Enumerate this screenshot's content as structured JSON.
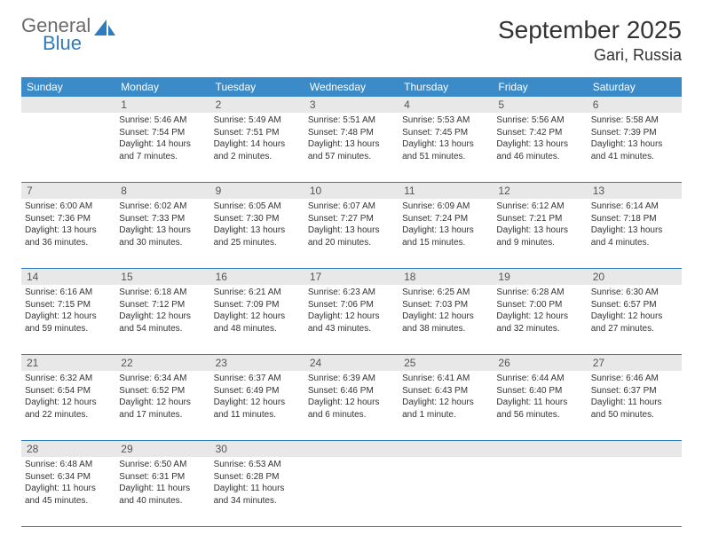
{
  "logo": {
    "line1": "General",
    "line2": "Blue",
    "icon_color": "#2f7bbf"
  },
  "title": {
    "month_year": "September 2025",
    "location": "Gari, Russia"
  },
  "colors": {
    "header_bg": "#3b8bc8",
    "header_text": "#ffffff",
    "daynum_bg": "#e8e8e8",
    "border": "#2f7bbf",
    "text": "#333333"
  },
  "weekdays": [
    "Sunday",
    "Monday",
    "Tuesday",
    "Wednesday",
    "Thursday",
    "Friday",
    "Saturday"
  ],
  "weeks": [
    {
      "nums": [
        "",
        "1",
        "2",
        "3",
        "4",
        "5",
        "6"
      ],
      "cells": [
        {},
        {
          "sunrise": "Sunrise: 5:46 AM",
          "sunset": "Sunset: 7:54 PM",
          "daylight": "Daylight: 14 hours and 7 minutes."
        },
        {
          "sunrise": "Sunrise: 5:49 AM",
          "sunset": "Sunset: 7:51 PM",
          "daylight": "Daylight: 14 hours and 2 minutes."
        },
        {
          "sunrise": "Sunrise: 5:51 AM",
          "sunset": "Sunset: 7:48 PM",
          "daylight": "Daylight: 13 hours and 57 minutes."
        },
        {
          "sunrise": "Sunrise: 5:53 AM",
          "sunset": "Sunset: 7:45 PM",
          "daylight": "Daylight: 13 hours and 51 minutes."
        },
        {
          "sunrise": "Sunrise: 5:56 AM",
          "sunset": "Sunset: 7:42 PM",
          "daylight": "Daylight: 13 hours and 46 minutes."
        },
        {
          "sunrise": "Sunrise: 5:58 AM",
          "sunset": "Sunset: 7:39 PM",
          "daylight": "Daylight: 13 hours and 41 minutes."
        }
      ]
    },
    {
      "nums": [
        "7",
        "8",
        "9",
        "10",
        "11",
        "12",
        "13"
      ],
      "cells": [
        {
          "sunrise": "Sunrise: 6:00 AM",
          "sunset": "Sunset: 7:36 PM",
          "daylight": "Daylight: 13 hours and 36 minutes."
        },
        {
          "sunrise": "Sunrise: 6:02 AM",
          "sunset": "Sunset: 7:33 PM",
          "daylight": "Daylight: 13 hours and 30 minutes."
        },
        {
          "sunrise": "Sunrise: 6:05 AM",
          "sunset": "Sunset: 7:30 PM",
          "daylight": "Daylight: 13 hours and 25 minutes."
        },
        {
          "sunrise": "Sunrise: 6:07 AM",
          "sunset": "Sunset: 7:27 PM",
          "daylight": "Daylight: 13 hours and 20 minutes."
        },
        {
          "sunrise": "Sunrise: 6:09 AM",
          "sunset": "Sunset: 7:24 PM",
          "daylight": "Daylight: 13 hours and 15 minutes."
        },
        {
          "sunrise": "Sunrise: 6:12 AM",
          "sunset": "Sunset: 7:21 PM",
          "daylight": "Daylight: 13 hours and 9 minutes."
        },
        {
          "sunrise": "Sunrise: 6:14 AM",
          "sunset": "Sunset: 7:18 PM",
          "daylight": "Daylight: 13 hours and 4 minutes."
        }
      ]
    },
    {
      "nums": [
        "14",
        "15",
        "16",
        "17",
        "18",
        "19",
        "20"
      ],
      "cells": [
        {
          "sunrise": "Sunrise: 6:16 AM",
          "sunset": "Sunset: 7:15 PM",
          "daylight": "Daylight: 12 hours and 59 minutes."
        },
        {
          "sunrise": "Sunrise: 6:18 AM",
          "sunset": "Sunset: 7:12 PM",
          "daylight": "Daylight: 12 hours and 54 minutes."
        },
        {
          "sunrise": "Sunrise: 6:21 AM",
          "sunset": "Sunset: 7:09 PM",
          "daylight": "Daylight: 12 hours and 48 minutes."
        },
        {
          "sunrise": "Sunrise: 6:23 AM",
          "sunset": "Sunset: 7:06 PM",
          "daylight": "Daylight: 12 hours and 43 minutes."
        },
        {
          "sunrise": "Sunrise: 6:25 AM",
          "sunset": "Sunset: 7:03 PM",
          "daylight": "Daylight: 12 hours and 38 minutes."
        },
        {
          "sunrise": "Sunrise: 6:28 AM",
          "sunset": "Sunset: 7:00 PM",
          "daylight": "Daylight: 12 hours and 32 minutes."
        },
        {
          "sunrise": "Sunrise: 6:30 AM",
          "sunset": "Sunset: 6:57 PM",
          "daylight": "Daylight: 12 hours and 27 minutes."
        }
      ]
    },
    {
      "nums": [
        "21",
        "22",
        "23",
        "24",
        "25",
        "26",
        "27"
      ],
      "cells": [
        {
          "sunrise": "Sunrise: 6:32 AM",
          "sunset": "Sunset: 6:54 PM",
          "daylight": "Daylight: 12 hours and 22 minutes."
        },
        {
          "sunrise": "Sunrise: 6:34 AM",
          "sunset": "Sunset: 6:52 PM",
          "daylight": "Daylight: 12 hours and 17 minutes."
        },
        {
          "sunrise": "Sunrise: 6:37 AM",
          "sunset": "Sunset: 6:49 PM",
          "daylight": "Daylight: 12 hours and 11 minutes."
        },
        {
          "sunrise": "Sunrise: 6:39 AM",
          "sunset": "Sunset: 6:46 PM",
          "daylight": "Daylight: 12 hours and 6 minutes."
        },
        {
          "sunrise": "Sunrise: 6:41 AM",
          "sunset": "Sunset: 6:43 PM",
          "daylight": "Daylight: 12 hours and 1 minute."
        },
        {
          "sunrise": "Sunrise: 6:44 AM",
          "sunset": "Sunset: 6:40 PM",
          "daylight": "Daylight: 11 hours and 56 minutes."
        },
        {
          "sunrise": "Sunrise: 6:46 AM",
          "sunset": "Sunset: 6:37 PM",
          "daylight": "Daylight: 11 hours and 50 minutes."
        }
      ]
    },
    {
      "nums": [
        "28",
        "29",
        "30",
        "",
        "",
        "",
        ""
      ],
      "cells": [
        {
          "sunrise": "Sunrise: 6:48 AM",
          "sunset": "Sunset: 6:34 PM",
          "daylight": "Daylight: 11 hours and 45 minutes."
        },
        {
          "sunrise": "Sunrise: 6:50 AM",
          "sunset": "Sunset: 6:31 PM",
          "daylight": "Daylight: 11 hours and 40 minutes."
        },
        {
          "sunrise": "Sunrise: 6:53 AM",
          "sunset": "Sunset: 6:28 PM",
          "daylight": "Daylight: 11 hours and 34 minutes."
        },
        {},
        {},
        {},
        {}
      ]
    }
  ]
}
